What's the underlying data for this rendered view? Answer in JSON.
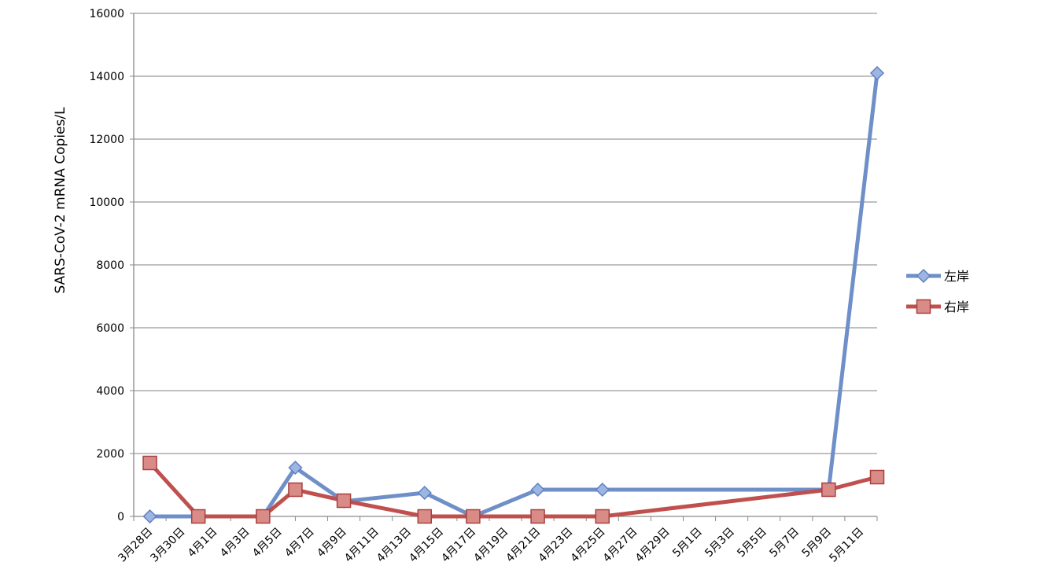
{
  "chart_data": {
    "type": "line",
    "title": "",
    "xlabel": "",
    "ylabel": "SARS-CoV-2 mRNA Copies/L",
    "ylim": [
      0,
      16000
    ],
    "yticks": [
      0,
      2000,
      4000,
      6000,
      8000,
      10000,
      12000,
      14000,
      16000
    ],
    "xticks": [
      "3月28日",
      "3月30日",
      "4月1日",
      "4月3日",
      "4月5日",
      "4月7日",
      "4月9日",
      "4月11日",
      "4月13日",
      "4月15日",
      "4月17日",
      "4月19日",
      "4月21日",
      "4月23日",
      "4月25日",
      "4月27日",
      "4月29日",
      "5月1日",
      "5月3日",
      "5月5日",
      "5月7日",
      "5月9日",
      "5月11日"
    ],
    "x_range": [
      "3月27日",
      "5月12日"
    ],
    "grid": true,
    "legend": "right",
    "series": [
      {
        "name": "左岸",
        "color": "#6f8fc9",
        "marker": "diamond",
        "points": [
          {
            "x": "3月28日",
            "y": 0
          },
          {
            "x": "3月31日",
            "y": 0
          },
          {
            "x": "4月4日",
            "y": 0
          },
          {
            "x": "4月6日",
            "y": 1550
          },
          {
            "x": "4月9日",
            "y": 480
          },
          {
            "x": "4月14日",
            "y": 750
          },
          {
            "x": "4月17日",
            "y": 0
          },
          {
            "x": "4月21日",
            "y": 850
          },
          {
            "x": "4月25日",
            "y": 850
          },
          {
            "x": "5月9日",
            "y": 850
          },
          {
            "x": "5月12日",
            "y": 14100
          }
        ]
      },
      {
        "name": "右岸",
        "color": "#c0504d",
        "marker": "square",
        "points": [
          {
            "x": "3月28日",
            "y": 1700
          },
          {
            "x": "3月31日",
            "y": 0
          },
          {
            "x": "4月4日",
            "y": 0
          },
          {
            "x": "4月6日",
            "y": 850
          },
          {
            "x": "4月9日",
            "y": 500
          },
          {
            "x": "4月14日",
            "y": 0
          },
          {
            "x": "4月17日",
            "y": 0
          },
          {
            "x": "4月21日",
            "y": 0
          },
          {
            "x": "4月25日",
            "y": 0
          },
          {
            "x": "5月9日",
            "y": 850
          },
          {
            "x": "5月12日",
            "y": 1250
          }
        ]
      }
    ]
  }
}
